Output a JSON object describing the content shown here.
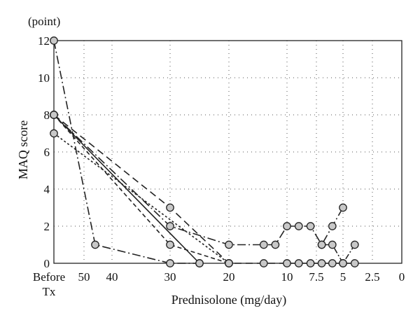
{
  "chart_data": {
    "type": "line",
    "ylabel": "MAQ score",
    "yunit": "(point)",
    "xlabel": "Prednisolone (mg/day)",
    "ylim": [
      0,
      12
    ],
    "y_ticks": [
      "0",
      "2",
      "4",
      "6",
      "8",
      "10",
      "12"
    ],
    "x_ticks": [
      "Before Tx",
      "50",
      "40",
      "30",
      "20",
      "10",
      "7.5",
      "5",
      "2.5",
      "0"
    ],
    "x_note": "x positions are category indexes into x_ticks (0 = Before Tx); fractional values lie between labeled doses",
    "grid": "dotted",
    "legend": "none",
    "series": [
      {
        "dash": "10,6",
        "points": [
          [
            0,
            8
          ],
          [
            3,
            3
          ],
          [
            4,
            0
          ],
          [
            4.6,
            0
          ],
          [
            5,
            0
          ],
          [
            5.4,
            0
          ],
          [
            5.8,
            0
          ],
          [
            6.2,
            0
          ],
          [
            6.6,
            0
          ],
          [
            7,
            0
          ],
          [
            7.4,
            0
          ]
        ]
      },
      {
        "dash": "12,4,2,4",
        "points": [
          [
            0,
            12
          ],
          [
            1.4,
            1
          ],
          [
            3,
            0
          ],
          [
            3.5,
            0
          ]
        ]
      },
      {
        "dash": "12,4,2,4",
        "points": [
          [
            0,
            8
          ],
          [
            3,
            2
          ],
          [
            4,
            1
          ],
          [
            4.6,
            1
          ],
          [
            4.8,
            1
          ],
          [
            5,
            2
          ],
          [
            5.4,
            2
          ],
          [
            5.8,
            2
          ],
          [
            6.2,
            1
          ],
          [
            6.6,
            2
          ],
          [
            7,
            3
          ]
        ]
      },
      {
        "dash": "",
        "points": [
          [
            0,
            8
          ],
          [
            3.5,
            0
          ]
        ]
      },
      {
        "dash": "3,3",
        "points": [
          [
            0,
            7
          ],
          [
            4,
            0
          ]
        ]
      },
      {
        "dash": "6,4",
        "points": [
          [
            0,
            8
          ],
          [
            3,
            1
          ],
          [
            4,
            0
          ]
        ]
      },
      {
        "dash": "2,3,8,3",
        "points": [
          [
            6.2,
            1
          ],
          [
            6.6,
            1
          ],
          [
            7,
            0
          ],
          [
            7.4,
            1
          ]
        ]
      }
    ]
  }
}
